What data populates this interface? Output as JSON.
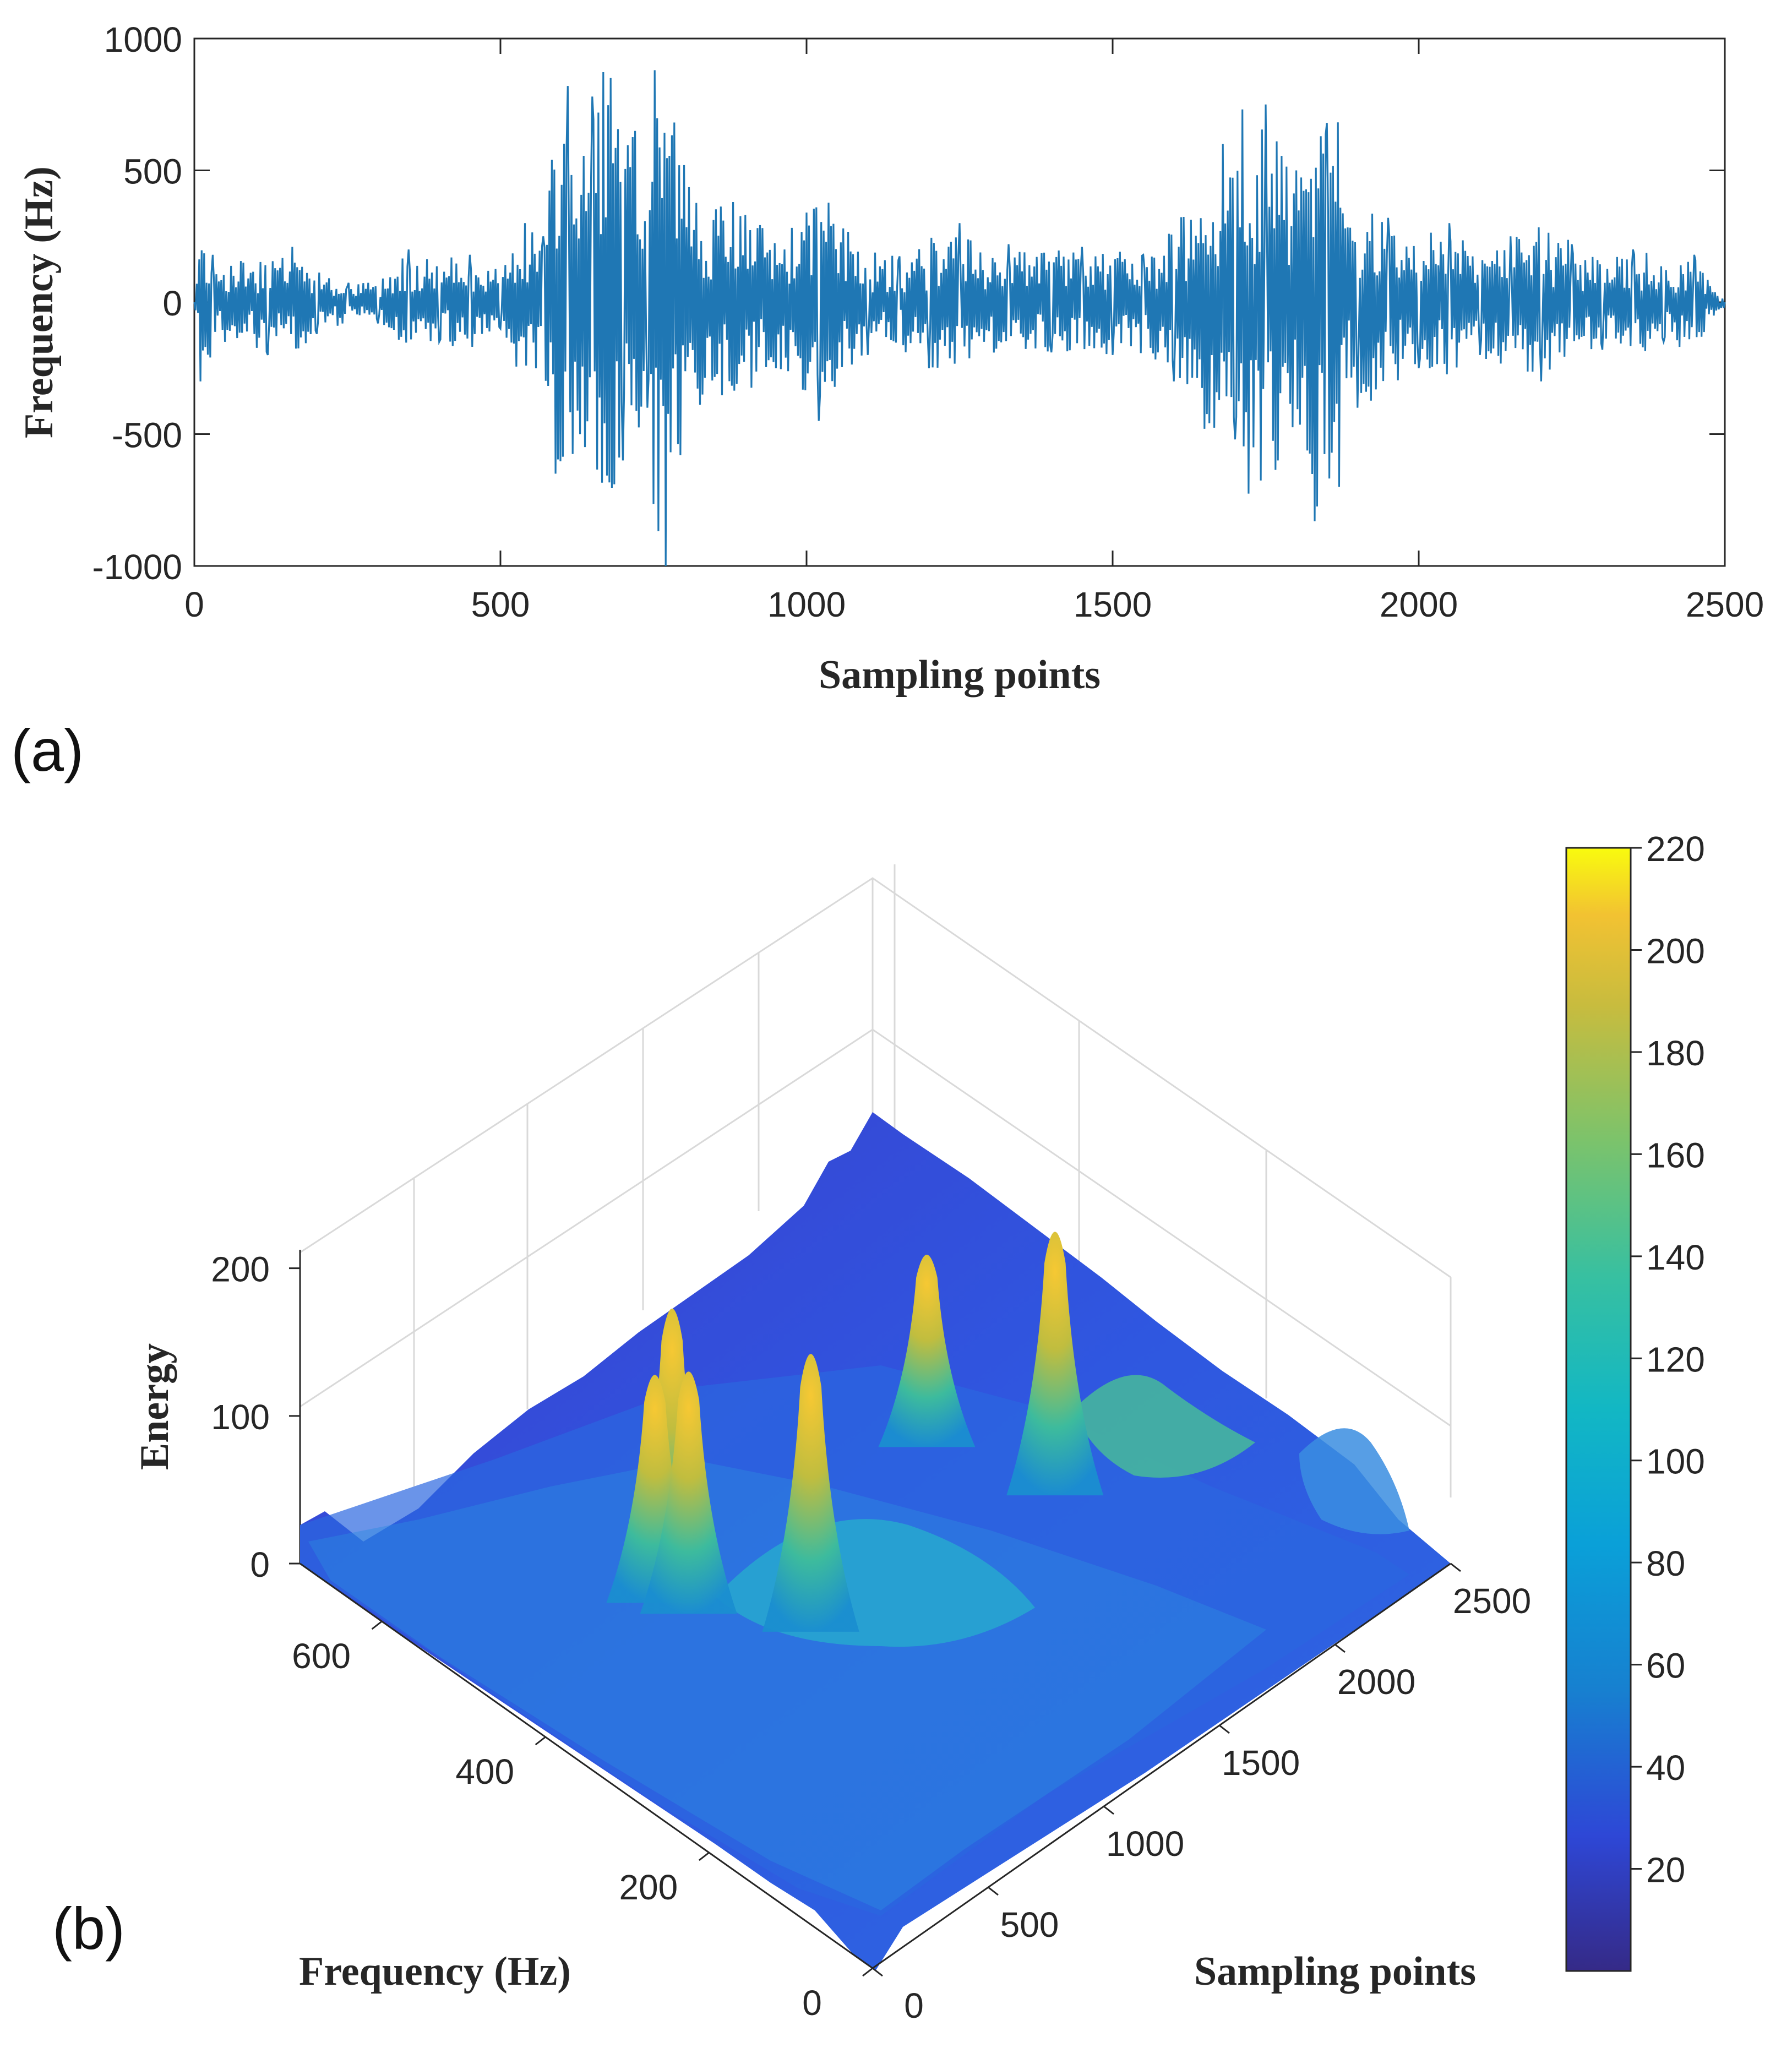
{
  "chart_data": [
    {
      "panel": "(a)",
      "type": "line",
      "xlabel": "Sampling points",
      "ylabel": "Frequency (Hz)",
      "xlim": [
        0,
        2500
      ],
      "ylim": [
        -1000,
        1000
      ],
      "xticks": [
        0,
        500,
        1000,
        1500,
        2000,
        2500
      ],
      "yticks": [
        -1000,
        -500,
        0,
        500,
        1000
      ],
      "series_color": "#1f77b4",
      "grid": false,
      "series": [
        {
          "name": "signal",
          "x": [
            0,
            10,
            30,
            50,
            80,
            120,
            160,
            200,
            250,
            300,
            350,
            400,
            450,
            500,
            540,
            570,
            590,
            610,
            630,
            650,
            665,
            680,
            700,
            720,
            740,
            752,
            770,
            800,
            830,
            880,
            950,
            1000,
            1020,
            1060,
            1100,
            1150,
            1200,
            1250,
            1290,
            1330,
            1400,
            1450,
            1500,
            1550,
            1600,
            1625,
            1650,
            1680,
            1700,
            1715,
            1730,
            1750,
            1770,
            1800,
            1830,
            1850,
            1870,
            1880,
            1900,
            1950,
            2000,
            2050,
            2100,
            2150,
            2200,
            2250,
            2300,
            2350,
            2400,
            2450,
            2500
          ],
          "y": [
            0,
            -300,
            180,
            -150,
            150,
            -200,
            210,
            -120,
            60,
            -80,
            200,
            -150,
            180,
            -100,
            300,
            250,
            -650,
            820,
            -500,
            780,
            -1000,
            850,
            -600,
            650,
            -400,
            880,
            -1000,
            520,
            -350,
            380,
            -250,
            340,
            -450,
            280,
            -200,
            160,
            -250,
            300,
            -150,
            220,
            -190,
            210,
            -200,
            180,
            -300,
            340,
            -480,
            600,
            -520,
            930,
            -550,
            750,
            -600,
            500,
            -830,
            680,
            -700,
            280,
            -400,
            320,
            -250,
            300,
            -200,
            250,
            -300,
            220,
            -180,
            200,
            -150,
            180,
            0
          ]
        }
      ]
    },
    {
      "panel": "(b)",
      "type": "surface3d",
      "xlabel": "Sampling points",
      "ylabel": "Frequency (Hz)",
      "zlabel": "Energy",
      "xlim": [
        0,
        2500
      ],
      "ylim": [
        0,
        700
      ],
      "zlim": [
        0,
        220
      ],
      "xticks": [
        0,
        500,
        1000,
        1500,
        2000,
        2500
      ],
      "yticks": [
        0,
        200,
        400,
        600
      ],
      "zticks": [
        0,
        100,
        200
      ],
      "colormap": "parula",
      "colorbar_range": [
        0,
        220
      ],
      "colorbar_ticks": [
        20,
        40,
        60,
        80,
        100,
        120,
        140,
        160,
        180,
        200,
        220
      ],
      "peaks": [
        {
          "sampling_point": 650,
          "frequency": 450,
          "energy": 160
        },
        {
          "sampling_point": 760,
          "frequency": 460,
          "energy": 190
        },
        {
          "sampling_point": 690,
          "frequency": 420,
          "energy": 170
        },
        {
          "sampling_point": 900,
          "frequency": 330,
          "energy": 195
        },
        {
          "sampling_point": 1720,
          "frequency": 420,
          "energy": 135
        },
        {
          "sampling_point": 1850,
          "frequency": 300,
          "energy": 185
        }
      ]
    }
  ],
  "panel_labels": {
    "a": "(a)",
    "b": "(b)"
  }
}
